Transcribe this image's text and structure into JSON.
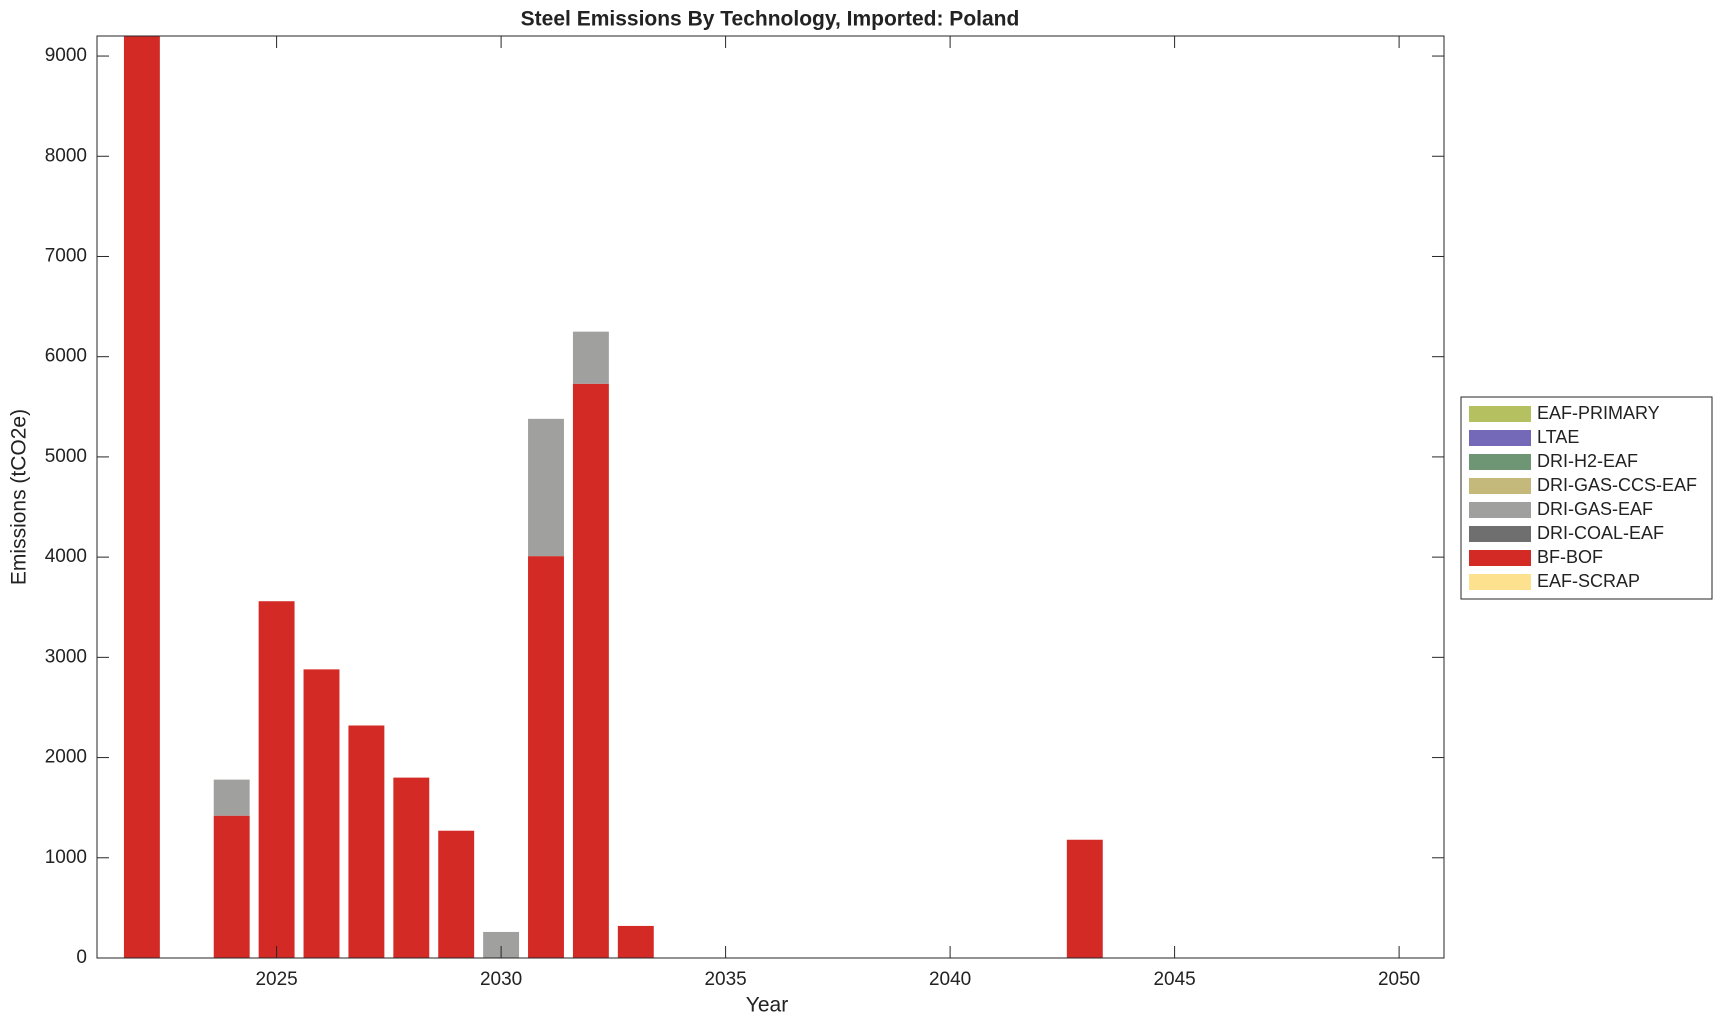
{
  "chart_data": {
    "type": "stacked-bar",
    "title": "Steel Emissions By Technology, Imported: Poland",
    "xlabel": "Year",
    "ylabel": "Emissions (tCO2e)",
    "x": [
      2022,
      2023,
      2024,
      2025,
      2026,
      2027,
      2028,
      2029,
      2030,
      2031,
      2032,
      2033,
      2034,
      2035,
      2036,
      2037,
      2038,
      2039,
      2040,
      2041,
      2042,
      2043,
      2044,
      2045,
      2046,
      2047,
      2048,
      2049,
      2050
    ],
    "xlim": [
      2021,
      2051
    ],
    "xticks": [
      2025,
      2030,
      2035,
      2040,
      2045,
      2050
    ],
    "ylim": [
      0,
      9200
    ],
    "yticks": [
      0,
      1000,
      2000,
      3000,
      4000,
      5000,
      6000,
      7000,
      8000,
      9000
    ],
    "legend": "outside-right",
    "series": [
      {
        "name": "EAF-PRIMARY",
        "color": "#b5c060",
        "values": [
          0,
          0,
          0,
          0,
          0,
          0,
          0,
          0,
          0,
          0,
          0,
          0,
          0,
          0,
          0,
          0,
          0,
          0,
          0,
          0,
          0,
          0,
          0,
          0,
          0,
          0,
          0,
          0,
          0
        ]
      },
      {
        "name": "LTAE",
        "color": "#7468b8",
        "values": [
          0,
          0,
          0,
          0,
          0,
          0,
          0,
          0,
          0,
          0,
          0,
          0,
          0,
          0,
          0,
          0,
          0,
          0,
          0,
          0,
          0,
          0,
          0,
          0,
          0,
          0,
          0,
          0,
          0
        ]
      },
      {
        "name": "DRI-H2-EAF",
        "color": "#6e9675",
        "values": [
          0,
          0,
          0,
          0,
          0,
          0,
          0,
          0,
          0,
          0,
          0,
          0,
          0,
          0,
          0,
          0,
          0,
          0,
          0,
          0,
          0,
          0,
          0,
          0,
          0,
          0,
          0,
          0,
          0
        ]
      },
      {
        "name": "DRI-GAS-CCS-EAF",
        "color": "#c4b97a",
        "values": [
          0,
          0,
          0,
          0,
          0,
          0,
          0,
          0,
          0,
          0,
          0,
          0,
          0,
          0,
          0,
          0,
          0,
          0,
          0,
          0,
          0,
          0,
          0,
          0,
          0,
          0,
          0,
          0,
          0
        ]
      },
      {
        "name": "DRI-GAS-EAF",
        "color": "#a0a09f",
        "values": [
          0,
          0,
          360,
          0,
          0,
          0,
          0,
          0,
          260,
          1370,
          520,
          0,
          0,
          0,
          0,
          0,
          0,
          0,
          0,
          0,
          0,
          0,
          0,
          0,
          0,
          0,
          0,
          0,
          0
        ]
      },
      {
        "name": "DRI-COAL-EAF",
        "color": "#6f6f6f",
        "values": [
          0,
          0,
          0,
          0,
          0,
          0,
          0,
          0,
          0,
          0,
          0,
          0,
          0,
          0,
          0,
          0,
          0,
          0,
          0,
          0,
          0,
          0,
          0,
          0,
          0,
          0,
          0,
          0,
          0
        ]
      },
      {
        "name": "BF-BOF",
        "color": "#d42a26",
        "values": [
          9200,
          0,
          1420,
          3560,
          2880,
          2320,
          1800,
          1270,
          0,
          4010,
          5730,
          320,
          0,
          0,
          0,
          0,
          0,
          0,
          0,
          0,
          0,
          1180,
          0,
          0,
          0,
          0,
          0,
          0,
          0
        ]
      },
      {
        "name": "EAF-SCRAP",
        "color": "#fde18f",
        "values": [
          0,
          0,
          0,
          0,
          0,
          0,
          0,
          0,
          0,
          0,
          0,
          0,
          0,
          0,
          0,
          0,
          0,
          0,
          0,
          0,
          0,
          0,
          0,
          0,
          0,
          0,
          0,
          0,
          0
        ]
      }
    ]
  }
}
